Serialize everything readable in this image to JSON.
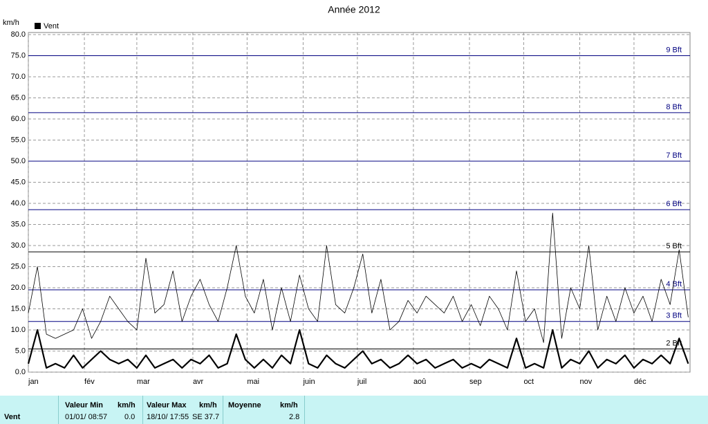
{
  "chart_data": {
    "type": "line",
    "title": "Année 2012",
    "y_unit": "km/h",
    "xlim": [
      0,
      366
    ],
    "xticks": [
      {
        "value": 0,
        "label": "jan"
      },
      {
        "value": 31,
        "label": "fév"
      },
      {
        "value": 60,
        "label": "mar"
      },
      {
        "value": 91,
        "label": "avr"
      },
      {
        "value": 121,
        "label": "mai"
      },
      {
        "value": 152,
        "label": "juin"
      },
      {
        "value": 182,
        "label": "juil"
      },
      {
        "value": 213,
        "label": "aoû"
      },
      {
        "value": 244,
        "label": "sep"
      },
      {
        "value": 274,
        "label": "oct"
      },
      {
        "value": 305,
        "label": "nov"
      },
      {
        "value": 335,
        "label": "déc"
      }
    ],
    "ylim": [
      0,
      80
    ],
    "yticks": [
      {
        "value": 0,
        "label": "0.0"
      },
      {
        "value": 5,
        "label": "5.0"
      },
      {
        "value": 10,
        "label": "10.0"
      },
      {
        "value": 15,
        "label": "15.0"
      },
      {
        "value": 20,
        "label": "20.0"
      },
      {
        "value": 25,
        "label": "25.0"
      },
      {
        "value": 30,
        "label": "30.0"
      },
      {
        "value": 35,
        "label": "35.0"
      },
      {
        "value": 40,
        "label": "40.0"
      },
      {
        "value": 45,
        "label": "45.0"
      },
      {
        "value": 50,
        "label": "50.0"
      },
      {
        "value": 55,
        "label": "55.0"
      },
      {
        "value": 60,
        "label": "60.0"
      },
      {
        "value": 65,
        "label": "65.0"
      },
      {
        "value": 70,
        "label": "70.0"
      },
      {
        "value": 75,
        "label": "75.0"
      },
      {
        "value": 80,
        "label": "80.0"
      }
    ],
    "grid": true,
    "reference_lines": [
      {
        "value": 5.5,
        "label": "2 Bft",
        "color": "#000000"
      },
      {
        "value": 12,
        "label": "3 Bft",
        "color": "#000080"
      },
      {
        "value": 19.5,
        "label": "4 Bft",
        "color": "#000080"
      },
      {
        "value": 28.5,
        "label": "5 Bft",
        "color": "#000000"
      },
      {
        "value": 38.5,
        "label": "6 Bft",
        "color": "#000080"
      },
      {
        "value": 50,
        "label": "7 Bft",
        "color": "#000080"
      },
      {
        "value": 61.5,
        "label": "8 Bft",
        "color": "#000080"
      },
      {
        "value": 75,
        "label": "9 Bft",
        "color": "#000080"
      }
    ],
    "x": [
      0,
      5,
      10,
      15,
      20,
      25,
      30,
      35,
      40,
      45,
      50,
      55,
      60,
      65,
      70,
      75,
      80,
      85,
      90,
      95,
      100,
      105,
      110,
      115,
      120,
      125,
      130,
      135,
      140,
      145,
      150,
      155,
      160,
      165,
      170,
      175,
      180,
      185,
      190,
      195,
      200,
      205,
      210,
      215,
      220,
      225,
      230,
      235,
      240,
      245,
      250,
      255,
      260,
      265,
      270,
      275,
      280,
      285,
      290,
      295,
      300,
      305,
      310,
      315,
      320,
      325,
      330,
      335,
      340,
      345,
      350,
      355,
      360,
      365
    ],
    "series": [
      {
        "name": "Vent",
        "color": "#000000",
        "width": 2.2,
        "values": [
          2,
          10,
          1,
          2,
          1,
          4,
          1,
          3,
          5,
          3,
          2,
          3,
          1,
          4,
          1,
          2,
          3,
          1,
          3,
          2,
          4,
          1,
          2,
          9,
          3,
          1,
          3,
          1,
          4,
          2,
          10,
          2,
          1,
          4,
          2,
          1,
          3,
          5,
          2,
          3,
          1,
          2,
          4,
          2,
          3,
          1,
          2,
          3,
          1,
          2,
          1,
          3,
          2,
          1,
          8,
          1,
          2,
          1,
          10,
          1,
          3,
          2,
          5,
          1,
          3,
          2,
          4,
          1,
          3,
          2,
          4,
          2,
          8,
          2
        ]
      },
      {
        "color": "#000000",
        "width": 0.8,
        "values": [
          14,
          25,
          9,
          8,
          9,
          10,
          15,
          8,
          12,
          18,
          15,
          12,
          10,
          27,
          14,
          16,
          24,
          12,
          18,
          22,
          16,
          12,
          20,
          30,
          18,
          14,
          22,
          10,
          20,
          12,
          23,
          15,
          12,
          30,
          16,
          14,
          20,
          28,
          14,
          22,
          10,
          12,
          17,
          14,
          18,
          16,
          14,
          18,
          12,
          16,
          11,
          18,
          15,
          10,
          24,
          12,
          15,
          7,
          37.7,
          8,
          20,
          15,
          30,
          10,
          18,
          12,
          20,
          14,
          18,
          12,
          22,
          16,
          29,
          13
        ]
      }
    ]
  },
  "stats": {
    "row_label": "Vent",
    "headers": [
      "Valeur Min",
      "km/h",
      "Valeur Max",
      "km/h",
      "Moyenne",
      "km/h"
    ],
    "values": [
      "01/01/ 08:57",
      "0.0",
      "18/10/ 17:55",
      "SE 37.7",
      "2.8"
    ]
  }
}
